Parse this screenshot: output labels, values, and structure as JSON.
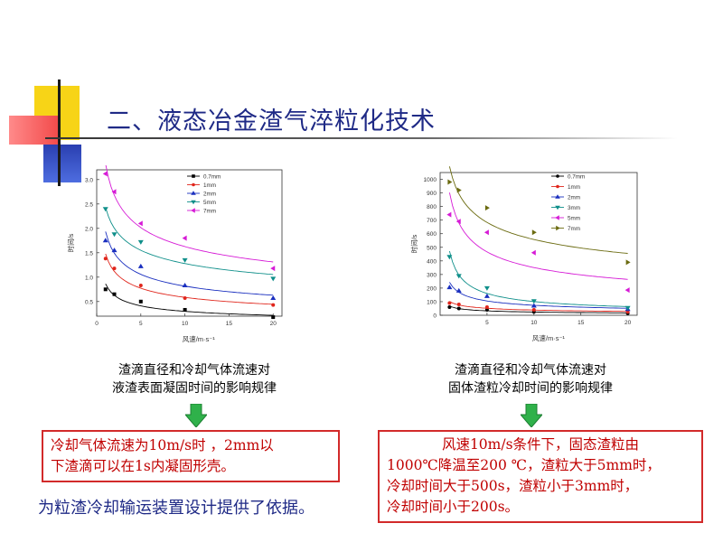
{
  "slide": {
    "title": "二、液态冶金渣气淬粒化技术",
    "footer_note": "为粒渣冷却输运装置设计提供了依据。"
  },
  "left_panel": {
    "caption_line1": "渣滴直径和冷却气体流速对",
    "caption_line2": "液渣表面凝固时间的影响规律",
    "conclusion_line1": "冷却气体流速为10m/s时 ，2mm以",
    "conclusion_line2": "下渣滴可以在1s内凝固形壳。"
  },
  "right_panel": {
    "caption_line1": "渣滴直径和冷却气体流速对",
    "caption_line2": "固体渣粒冷却时间的影响规律",
    "conclusion_line1": "风速10m/s条件下，固态渣粒由",
    "conclusion_line2": "1000℃降温至200 ℃，渣粒大于5mm时，",
    "conclusion_line3": "冷却时间大于500s，渣粒小于3mm时，",
    "conclusion_line4": "冷却时间小于200s。"
  },
  "chart_data": [
    {
      "type": "scatter",
      "xlabel": "风速/m·s⁻¹",
      "ylabel": "时间/s",
      "xlim": [
        0,
        21
      ],
      "ylim": [
        0.2,
        3.2
      ],
      "xticks": [
        "0",
        "5",
        "10",
        "15",
        "20"
      ],
      "yticks": [
        "0.5",
        "1.0",
        "1.5",
        "2.0",
        "2.5",
        "3.0"
      ],
      "legend_position": "top-right",
      "series": [
        {
          "name": "0.7mm",
          "color": "#000000",
          "marker": "square",
          "x": [
            1,
            2,
            5,
            10,
            20
          ],
          "y": [
            0.75,
            0.65,
            0.5,
            0.33,
            0.18
          ]
        },
        {
          "name": "1mm",
          "color": "#e0261c",
          "marker": "circle",
          "x": [
            1,
            2,
            5,
            10,
            20
          ],
          "y": [
            1.38,
            1.18,
            0.83,
            0.57,
            0.43
          ]
        },
        {
          "name": "2mm",
          "color": "#1a2fbf",
          "marker": "triangle-up",
          "x": [
            1,
            2,
            5,
            10,
            20
          ],
          "y": [
            1.75,
            1.55,
            1.22,
            0.83,
            0.57
          ]
        },
        {
          "name": "5mm",
          "color": "#0f8f8a",
          "marker": "triangle-down",
          "x": [
            1,
            2,
            5,
            10,
            20
          ],
          "y": [
            2.4,
            1.88,
            1.72,
            1.35,
            0.97
          ]
        },
        {
          "name": "7mm",
          "color": "#d61bd6",
          "marker": "triangle-left",
          "x": [
            1,
            2,
            5,
            10,
            20
          ],
          "y": [
            3.12,
            2.75,
            2.1,
            1.8,
            1.18
          ]
        }
      ]
    },
    {
      "type": "scatter",
      "xlabel": "风速/m·s⁻¹",
      "ylabel": "时间/s",
      "xlim": [
        0,
        21
      ],
      "ylim": [
        0,
        1050
      ],
      "xticks": [
        "5",
        "10",
        "15",
        "20"
      ],
      "yticks": [
        "0",
        "100",
        "200",
        "300",
        "400",
        "500",
        "600",
        "700",
        "800",
        "900",
        "1000"
      ],
      "legend_position": "top-right",
      "series": [
        {
          "name": "0.7mm",
          "color": "#000000",
          "marker": "circle",
          "x": [
            1,
            2,
            5,
            10,
            20
          ],
          "y": [
            60,
            50,
            40,
            25,
            15
          ]
        },
        {
          "name": "1mm",
          "color": "#e0261c",
          "marker": "circle",
          "x": [
            1,
            2,
            5,
            10,
            20
          ],
          "y": [
            90,
            80,
            60,
            40,
            25
          ]
        },
        {
          "name": "2mm",
          "color": "#1a2fbf",
          "marker": "triangle-up",
          "x": [
            1,
            2,
            5,
            10,
            20
          ],
          "y": [
            205,
            180,
            140,
            70,
            45
          ]
        },
        {
          "name": "3mm",
          "color": "#0f8f8a",
          "marker": "triangle-down",
          "x": [
            1,
            2,
            5,
            10,
            20
          ],
          "y": [
            430,
            290,
            200,
            105,
            55
          ]
        },
        {
          "name": "5mm",
          "color": "#d61bd6",
          "marker": "triangle-left",
          "x": [
            1,
            2,
            5,
            10,
            20
          ],
          "y": [
            740,
            690,
            610,
            460,
            185
          ]
        },
        {
          "name": "7mm",
          "color": "#6b6b10",
          "marker": "triangle-right",
          "x": [
            1,
            2,
            5,
            10,
            20
          ],
          "y": [
            980,
            920,
            790,
            610,
            390
          ]
        }
      ]
    }
  ],
  "colors": {
    "title_blue": "#1f2a86",
    "box_red": "#c00000",
    "arrow_green": "#2fb14a"
  },
  "icons": [
    "down-arrow-icon",
    "down-arrow-icon"
  ]
}
